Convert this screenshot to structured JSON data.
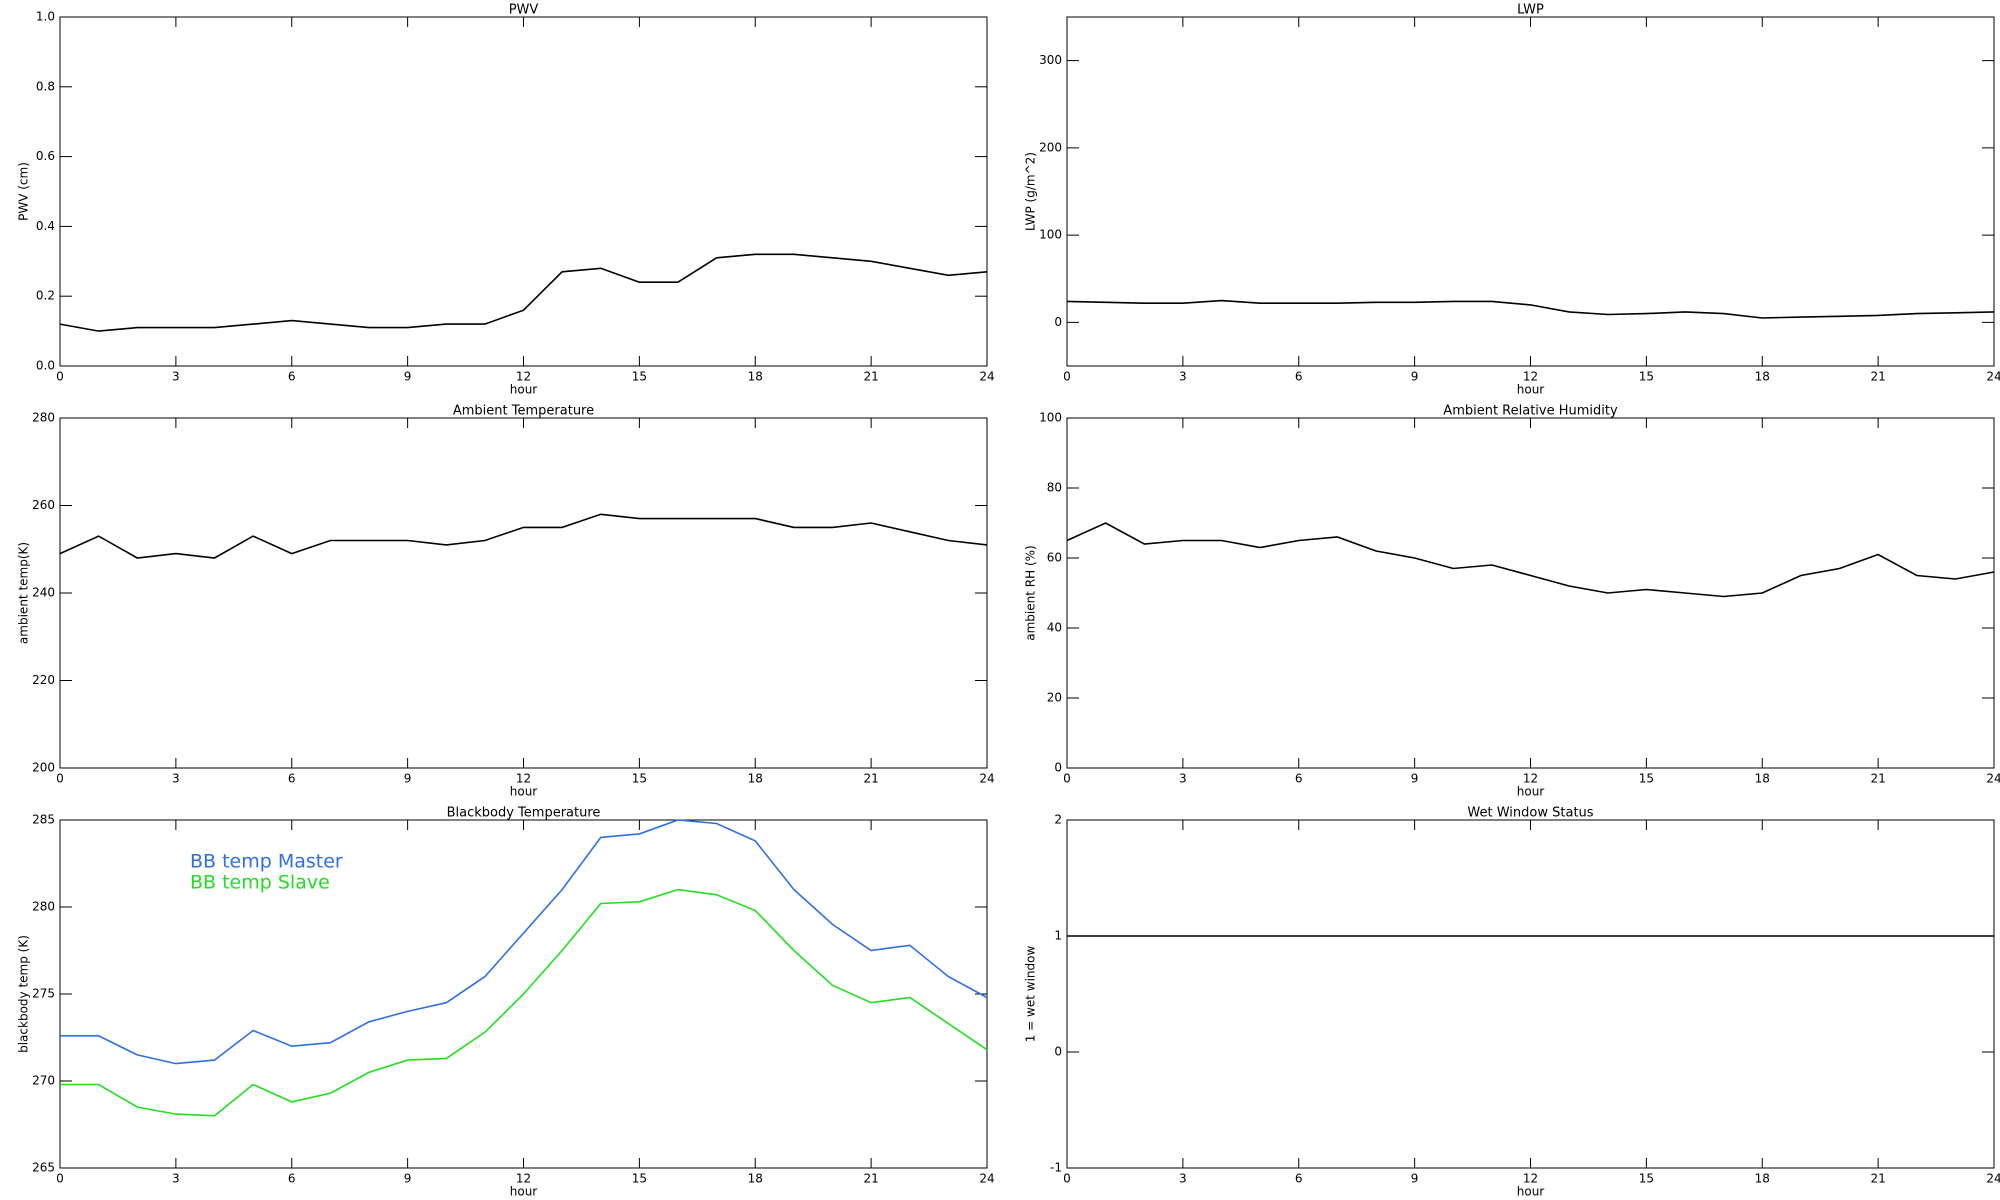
{
  "chart_data": [
    {
      "type": "line",
      "title": "PWV",
      "xlabel": "hour",
      "ylabel": "PWV (cm)",
      "x": [
        0,
        1,
        2,
        3,
        4,
        5,
        6,
        7,
        8,
        9,
        10,
        11,
        12,
        13,
        14,
        15,
        16,
        17,
        18,
        19,
        20,
        21,
        22,
        23,
        24
      ],
      "values": [
        0.12,
        0.1,
        0.11,
        0.11,
        0.11,
        0.12,
        0.13,
        0.12,
        0.11,
        0.11,
        0.12,
        0.12,
        0.16,
        0.27,
        0.28,
        0.24,
        0.24,
        0.31,
        0.32,
        0.32,
        0.31,
        0.3,
        0.28,
        0.26,
        0.27
      ],
      "color": "#000000",
      "xlim": [
        0,
        24
      ],
      "xticks": [
        0,
        3,
        6,
        9,
        12,
        15,
        18,
        21,
        24
      ],
      "ylim": [
        0,
        1
      ],
      "yticks": [
        {
          "value": 0,
          "label": "0.0"
        },
        0.2,
        0.4,
        0.6,
        0.8,
        {
          "value": 1,
          "label": "1.0"
        }
      ]
    },
    {
      "type": "line",
      "title": "LWP",
      "xlabel": "hour",
      "ylabel": "LWP (g/m^2)",
      "x": [
        0,
        1,
        2,
        3,
        4,
        5,
        6,
        7,
        8,
        9,
        10,
        11,
        12,
        13,
        14,
        15,
        16,
        17,
        18,
        19,
        20,
        21,
        22,
        23,
        24
      ],
      "values": [
        24,
        23,
        22,
        22,
        25,
        22,
        22,
        22,
        23,
        23,
        24,
        24,
        20,
        12,
        9,
        10,
        12,
        10,
        5,
        6,
        7,
        8,
        10,
        11,
        12
      ],
      "color": "#000000",
      "xlim": [
        0,
        24
      ],
      "xticks": [
        0,
        3,
        6,
        9,
        12,
        15,
        18,
        21,
        24
      ],
      "ylim": [
        -50,
        350
      ],
      "yticks": [
        0,
        100,
        200,
        300
      ]
    },
    {
      "type": "line",
      "title": "Ambient Temperature",
      "xlabel": "hour",
      "ylabel": "ambient temp(K)",
      "x": [
        0,
        1,
        2,
        3,
        4,
        5,
        6,
        7,
        8,
        9,
        10,
        11,
        12,
        13,
        14,
        15,
        16,
        17,
        18,
        19,
        20,
        21,
        22,
        23,
        24
      ],
      "values": [
        249,
        253,
        248,
        249,
        248,
        253,
        249,
        252,
        252,
        252,
        251,
        252,
        255,
        255,
        258,
        257,
        257,
        257,
        257,
        255,
        255,
        256,
        254,
        252,
        251
      ],
      "color": "#000000",
      "xlim": [
        0,
        24
      ],
      "xticks": [
        0,
        3,
        6,
        9,
        12,
        15,
        18,
        21,
        24
      ],
      "ylim": [
        200,
        280
      ],
      "yticks": [
        200,
        220,
        240,
        260,
        280
      ]
    },
    {
      "type": "line",
      "title": "Ambient Relative Humidity",
      "xlabel": "hour",
      "ylabel": "ambient RH (%)",
      "x": [
        0,
        1,
        2,
        3,
        4,
        5,
        6,
        7,
        8,
        9,
        10,
        11,
        12,
        13,
        14,
        15,
        16,
        17,
        18,
        19,
        20,
        21,
        22,
        23,
        24
      ],
      "values": [
        65,
        70,
        64,
        65,
        65,
        63,
        65,
        66,
        62,
        60,
        57,
        58,
        55,
        52,
        50,
        51,
        50,
        49,
        50,
        55,
        57,
        61,
        55,
        54,
        56
      ],
      "color": "#000000",
      "xlim": [
        0,
        24
      ],
      "xticks": [
        0,
        3,
        6,
        9,
        12,
        15,
        18,
        21,
        24
      ],
      "ylim": [
        0,
        100
      ],
      "yticks": [
        0,
        20,
        40,
        60,
        80,
        100
      ]
    },
    {
      "type": "line",
      "title": "Blackbody Temperature",
      "xlabel": "hour",
      "ylabel": "blackbody temp (K)",
      "x": [
        0,
        1,
        2,
        3,
        4,
        5,
        6,
        7,
        8,
        9,
        10,
        11,
        12,
        13,
        14,
        15,
        16,
        17,
        18,
        19,
        20,
        21,
        22,
        23,
        24
      ],
      "series": [
        {
          "name": "BB temp Master",
          "color": "#2f6fe0",
          "values": [
            272.6,
            272.6,
            271.5,
            271,
            271.2,
            272.9,
            272,
            272.2,
            273.4,
            274,
            274.5,
            276,
            278.5,
            281,
            284,
            284.2,
            285,
            284.8,
            283.8,
            281,
            279,
            277.5,
            277.8,
            276,
            274.8
          ]
        },
        {
          "name": "BB temp Slave",
          "color": "#22dd22",
          "values": [
            269.8,
            269.8,
            268.5,
            268.1,
            268,
            269.8,
            268.8,
            269.3,
            270.5,
            271.2,
            271.3,
            272.8,
            275,
            277.5,
            280.2,
            280.3,
            281,
            280.7,
            279.8,
            277.5,
            275.5,
            274.5,
            274.8,
            273.3,
            271.8
          ]
        }
      ],
      "xlim": [
        0,
        24
      ],
      "xticks": [
        0,
        3,
        6,
        9,
        12,
        15,
        18,
        21,
        24
      ],
      "ylim": [
        265,
        285
      ],
      "yticks": [
        265,
        270,
        275,
        280,
        285
      ]
    },
    {
      "type": "line",
      "title": "Wet Window Status",
      "xlabel": "hour",
      "ylabel": "1 = wet window",
      "x": [
        0,
        24
      ],
      "values": [
        1,
        1
      ],
      "color": "#000000",
      "xlim": [
        0,
        24
      ],
      "xticks": [
        0,
        3,
        6,
        9,
        12,
        15,
        18,
        21,
        24
      ],
      "ylim": [
        -1,
        2
      ],
      "yticks": [
        -1,
        0,
        1,
        2
      ]
    }
  ]
}
